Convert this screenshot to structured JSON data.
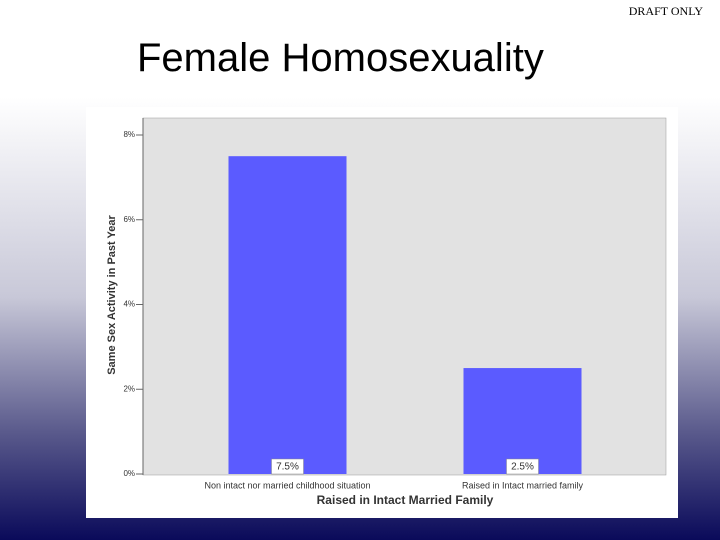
{
  "header": {
    "note": "DRAFT ONLY",
    "title": "Female Homosexuality"
  },
  "chart_data": {
    "type": "bar",
    "categories": [
      "Non intact nor married childhood situation",
      "Raised in Intact married family"
    ],
    "values": [
      7.5,
      2.5
    ],
    "value_labels": [
      "7.5%",
      "2.5%"
    ],
    "color": "#5b5bff",
    "xlabel": "Raised in Intact Married Family",
    "ylabel": "Same Sex Activity in Past Year",
    "ylim": [
      0,
      8
    ],
    "yticks": [
      {
        "value": 0,
        "label": "0%"
      },
      {
        "value": 2,
        "label": "2%"
      },
      {
        "value": 4,
        "label": "4%"
      },
      {
        "value": 6,
        "label": "6%"
      },
      {
        "value": 8,
        "label": "8%"
      }
    ]
  }
}
